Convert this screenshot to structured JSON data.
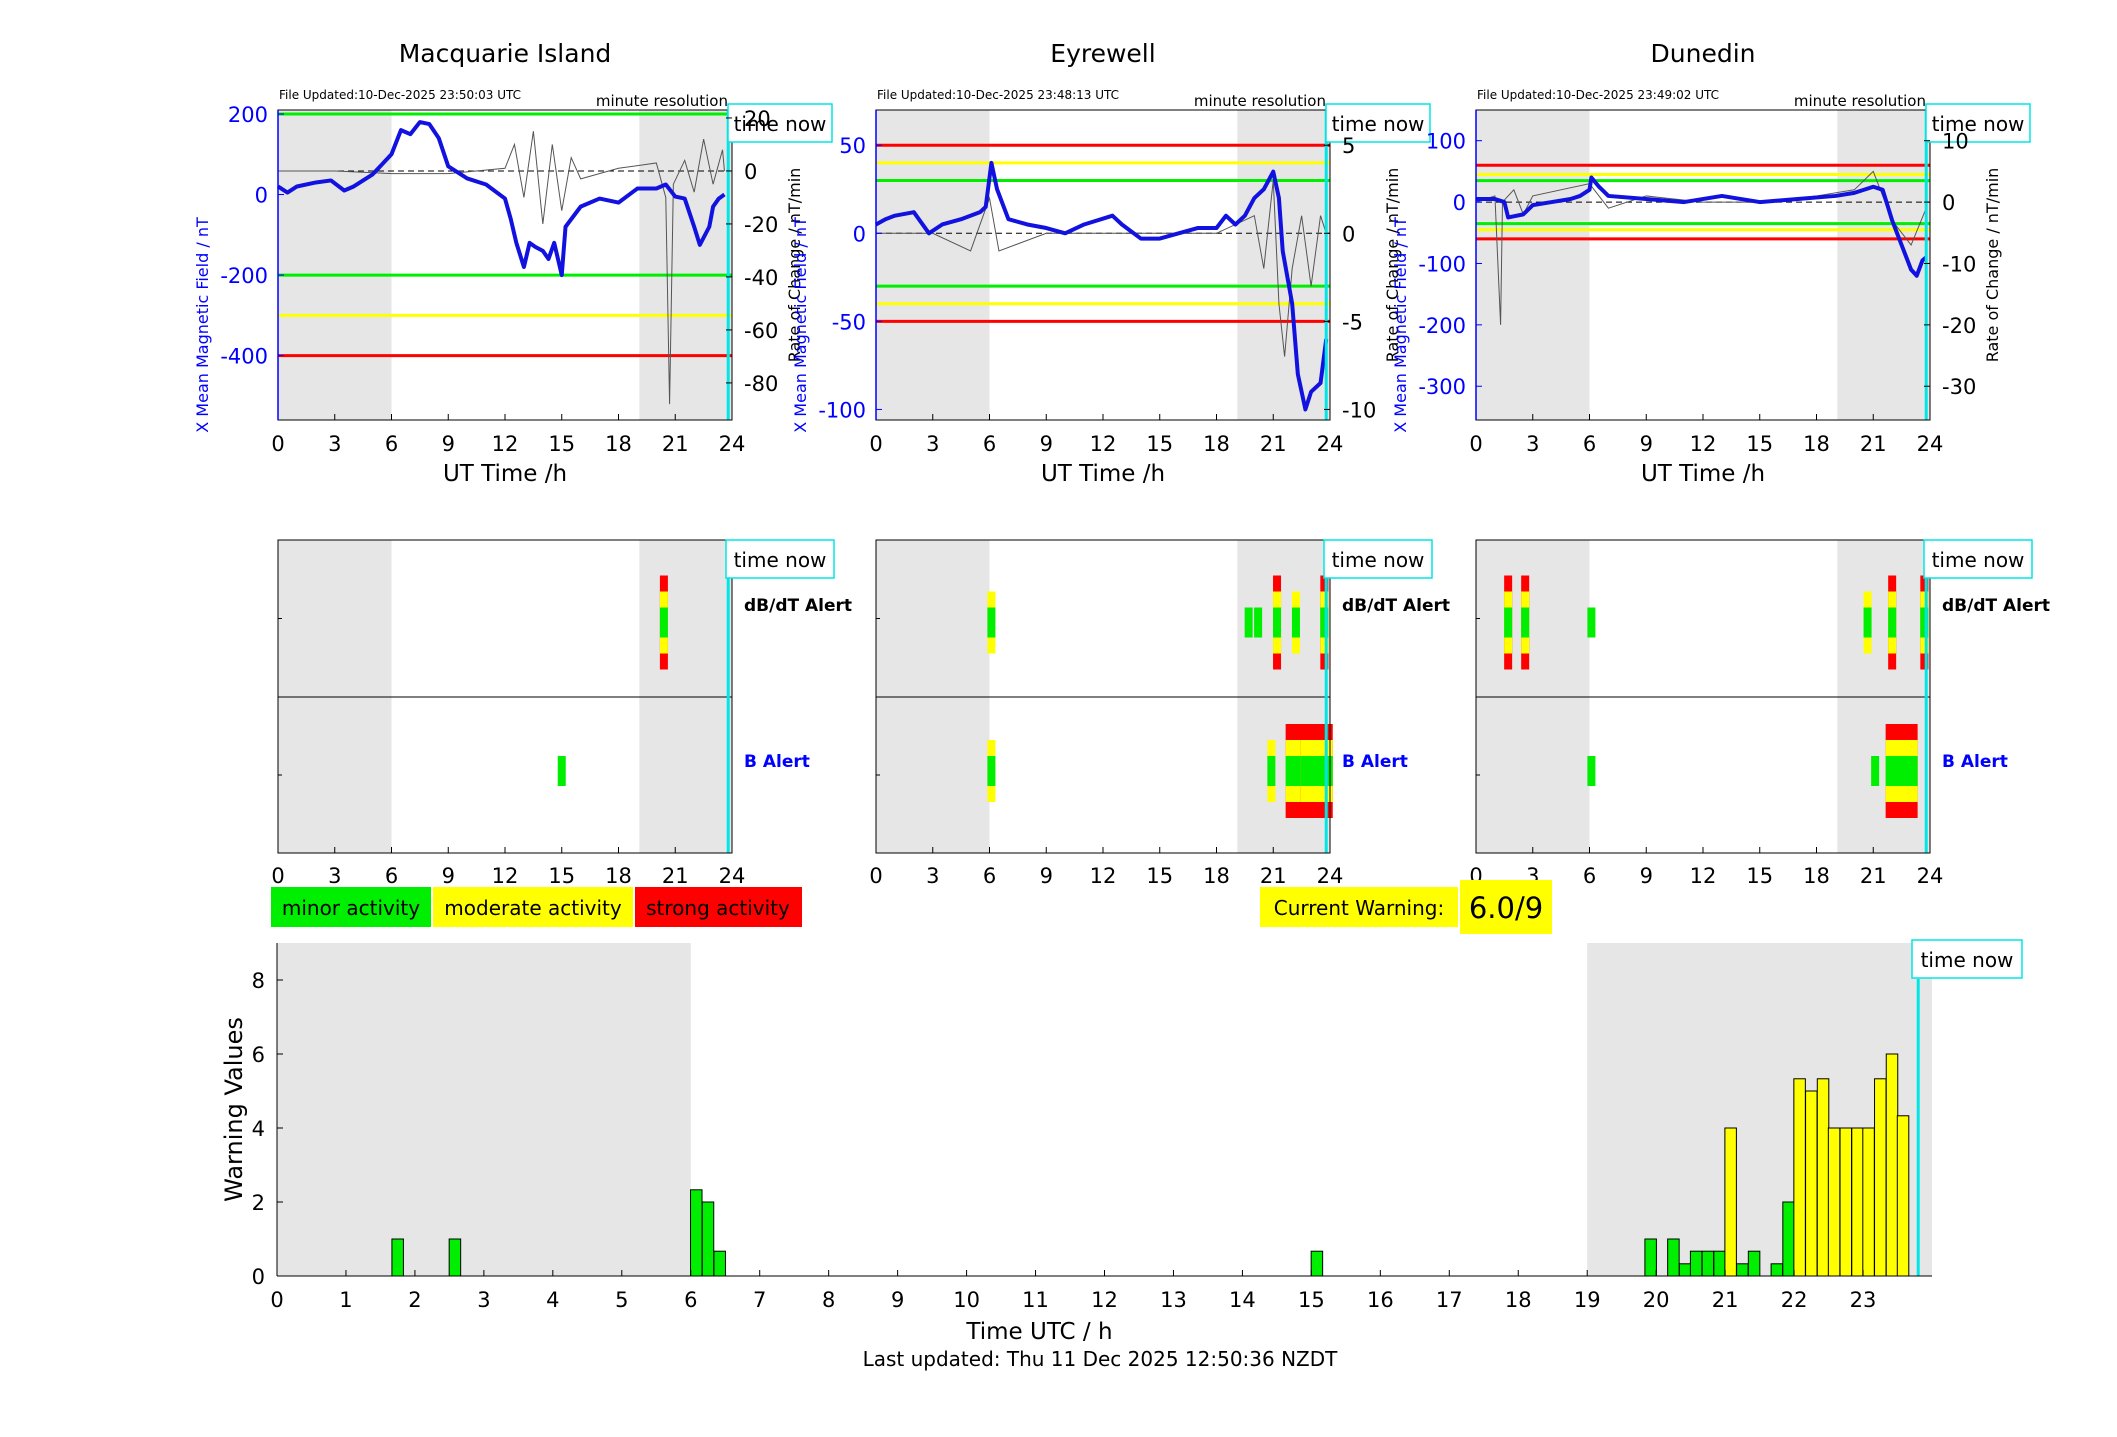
{
  "colors": {
    "shade": "#e6e6e6",
    "blue_trace": "#1212e0",
    "rate_trace": "#555555",
    "green": "#00ee00",
    "yellow": "#ffff00",
    "red": "#ff0000",
    "cyan": "#00e5e5",
    "axis_blue": "#0000ff"
  },
  "labels": {
    "time_now": "time now",
    "minute_resolution": "minute resolution",
    "dbdt_alert": "dB/dT Alert",
    "b_alert": "B Alert",
    "ut_time": "UT Time /h",
    "x_mean_label": "X Mean Magnetic Field / nT",
    "rate_label": "Rate of Change / nT/min",
    "legend_minor": "minor activity",
    "legend_moderate": "moderate activity",
    "legend_strong": "strong activity",
    "current_warning_label": "Current Warning:",
    "current_warning_value": "6.0/9",
    "bottom_xlabel": "Time UTC / h",
    "bottom_ylabel": "Warning Values",
    "last_updated": "Last updated: Thu 11 Dec 2025 12:50:36 NZDT"
  },
  "chart_data": [
    {
      "type": "line",
      "title": "Macquarie Island",
      "file_updated": "File Updated:10-Dec-2025 23:50:03 UTC",
      "resolution": "minute resolution",
      "xlabel": "UT Time /h",
      "xlim": [
        0,
        24
      ],
      "xticks": [
        0,
        3,
        6,
        9,
        12,
        15,
        18,
        21,
        24
      ],
      "left_axis": {
        "label": "X Mean Magnetic Field / nT",
        "lim": [
          -560,
          210
        ],
        "ticks": [
          200,
          0,
          -200,
          -400
        ]
      },
      "right_axis": {
        "label": "Rate of Change / nT/min",
        "lim": [
          -94,
          23
        ],
        "ticks": [
          20,
          0,
          -20,
          -40,
          -60,
          -80
        ]
      },
      "shaded_intervals": [
        [
          0,
          6
        ],
        [
          19.1,
          24
        ]
      ],
      "thresholds": [
        {
          "level": "green",
          "values": [
            200,
            -200
          ]
        },
        {
          "level": "yellow",
          "values": [
            -300
          ]
        },
        {
          "level": "red",
          "values": [
            -400
          ]
        }
      ],
      "series_x_mean": [
        [
          0,
          20
        ],
        [
          0.5,
          5
        ],
        [
          1,
          20
        ],
        [
          2,
          30
        ],
        [
          2.8,
          35
        ],
        [
          3.5,
          10
        ],
        [
          4,
          20
        ],
        [
          5,
          50
        ],
        [
          6,
          100
        ],
        [
          6.5,
          160
        ],
        [
          7,
          150
        ],
        [
          7.5,
          180
        ],
        [
          8,
          175
        ],
        [
          8.5,
          140
        ],
        [
          9,
          70
        ],
        [
          10,
          40
        ],
        [
          11,
          25
        ],
        [
          12,
          -10
        ],
        [
          12.3,
          -60
        ],
        [
          12.6,
          -120
        ],
        [
          13,
          -180
        ],
        [
          13.3,
          -120
        ],
        [
          13.6,
          -130
        ],
        [
          14,
          -140
        ],
        [
          14.3,
          -160
        ],
        [
          14.6,
          -120
        ],
        [
          15,
          -200
        ],
        [
          15.2,
          -80
        ],
        [
          16,
          -30
        ],
        [
          17,
          -10
        ],
        [
          18,
          -20
        ],
        [
          19,
          15
        ],
        [
          20,
          15
        ],
        [
          20.5,
          25
        ],
        [
          21,
          -5
        ],
        [
          21.5,
          -10
        ],
        [
          22,
          -80
        ],
        [
          22.3,
          -125
        ],
        [
          22.8,
          -80
        ],
        [
          23,
          -30
        ],
        [
          23.3,
          -10
        ],
        [
          23.6,
          0
        ]
      ],
      "series_rate": [
        [
          0,
          0
        ],
        [
          3,
          0
        ],
        [
          6,
          -1
        ],
        [
          9,
          -1
        ],
        [
          12,
          1
        ],
        [
          12.5,
          10
        ],
        [
          13,
          -10
        ],
        [
          13.5,
          15
        ],
        [
          14,
          -20
        ],
        [
          14.5,
          10
        ],
        [
          15,
          -15
        ],
        [
          15.5,
          5
        ],
        [
          16,
          -3
        ],
        [
          18,
          1
        ],
        [
          20,
          3
        ],
        [
          20.5,
          -10
        ],
        [
          20.7,
          -88
        ],
        [
          20.9,
          -5
        ],
        [
          21.5,
          4
        ],
        [
          22,
          -8
        ],
        [
          22.5,
          12
        ],
        [
          23,
          -5
        ],
        [
          23.5,
          8
        ],
        [
          23.6,
          0
        ]
      ],
      "alert_strips": {
        "dbdt": [
          {
            "t": 20.4,
            "level": "strong"
          }
        ],
        "b": [
          {
            "t": 15.0,
            "level": "minor"
          }
        ]
      },
      "time_now": 23.8
    },
    {
      "type": "line",
      "title": "Eyrewell",
      "file_updated": "File Updated:10-Dec-2025 23:48:13 UTC",
      "resolution": "minute resolution",
      "xlabel": "UT Time /h",
      "xlim": [
        0,
        24
      ],
      "xticks": [
        0,
        3,
        6,
        9,
        12,
        15,
        18,
        21,
        24
      ],
      "left_axis": {
        "label": "X Mean Magnetic Field / nT",
        "lim": [
          -106,
          70
        ],
        "ticks": [
          50,
          0,
          -50,
          -100
        ]
      },
      "right_axis": {
        "label": "Rate of Change / nT/min",
        "lim": [
          -10.6,
          7.0
        ],
        "ticks": [
          5,
          0,
          -5,
          -10
        ]
      },
      "shaded_intervals": [
        [
          0,
          6
        ],
        [
          19.1,
          24
        ]
      ],
      "thresholds": [
        {
          "level": "green",
          "values": [
            30,
            -30
          ]
        },
        {
          "level": "yellow",
          "values": [
            40,
            -40
          ]
        },
        {
          "level": "red",
          "values": [
            50,
            -50
          ]
        }
      ],
      "series_x_mean": [
        [
          0,
          5
        ],
        [
          0.5,
          8
        ],
        [
          1,
          10
        ],
        [
          2,
          12
        ],
        [
          2.8,
          0
        ],
        [
          3.5,
          5
        ],
        [
          4.5,
          8
        ],
        [
          5.5,
          12
        ],
        [
          5.8,
          15
        ],
        [
          6.1,
          40
        ],
        [
          6.4,
          25
        ],
        [
          7,
          8
        ],
        [
          8,
          5
        ],
        [
          9,
          3
        ],
        [
          10,
          0
        ],
        [
          11,
          5
        ],
        [
          12.5,
          10
        ],
        [
          13,
          5
        ],
        [
          14,
          -3
        ],
        [
          15,
          -3
        ],
        [
          16,
          0
        ],
        [
          17,
          3
        ],
        [
          18,
          3
        ],
        [
          18.5,
          10
        ],
        [
          19,
          5
        ],
        [
          19.5,
          10
        ],
        [
          20,
          20
        ],
        [
          20.5,
          25
        ],
        [
          21,
          35
        ],
        [
          21.3,
          20
        ],
        [
          21.5,
          -10
        ],
        [
          22,
          -40
        ],
        [
          22.3,
          -80
        ],
        [
          22.7,
          -100
        ],
        [
          23,
          -90
        ],
        [
          23.5,
          -85
        ],
        [
          23.8,
          -60
        ]
      ],
      "series_rate": [
        [
          0,
          0
        ],
        [
          3,
          0
        ],
        [
          5,
          -1
        ],
        [
          6,
          2
        ],
        [
          6.5,
          -1
        ],
        [
          9,
          0
        ],
        [
          12,
          0
        ],
        [
          15,
          0
        ],
        [
          18,
          0
        ],
        [
          20,
          1
        ],
        [
          20.5,
          -2
        ],
        [
          21,
          3
        ],
        [
          21.3,
          -4
        ],
        [
          21.6,
          -7
        ],
        [
          22,
          -2
        ],
        [
          22.5,
          1
        ],
        [
          23,
          -3
        ],
        [
          23.5,
          1
        ],
        [
          23.8,
          0
        ]
      ],
      "alert_strips": {
        "dbdt": [
          {
            "t": 6.1,
            "level": "moderate"
          },
          {
            "t": 19.7,
            "level": "minor"
          },
          {
            "t": 20.2,
            "level": "minor"
          },
          {
            "t": 21.2,
            "level": "strong"
          },
          {
            "t": 22.2,
            "level": "moderate"
          },
          {
            "t": 23.7,
            "level": "strong"
          }
        ],
        "b": [
          {
            "t": 6.1,
            "level": "moderate"
          },
          {
            "t": 20.9,
            "level": "moderate"
          },
          {
            "t": 22.5,
            "level": "strong"
          },
          {
            "t": 23.3,
            "level": "strong"
          }
        ]
      },
      "time_now": 23.8
    },
    {
      "type": "line",
      "title": "Dunedin",
      "file_updated": "File Updated:10-Dec-2025 23:49:02 UTC",
      "resolution": "minute resolution",
      "xlabel": "UT Time /h",
      "xlim": [
        0,
        24
      ],
      "xticks": [
        0,
        3,
        6,
        9,
        12,
        15,
        18,
        21,
        24
      ],
      "left_axis": {
        "label": "X Mean Magnetic Field / nT",
        "lim": [
          -355,
          150
        ],
        "ticks": [
          100,
          0,
          -100,
          -200,
          -300
        ]
      },
      "right_axis": {
        "label": "Rate of Change / nT/min",
        "lim": [
          -35.5,
          15
        ],
        "ticks": [
          10,
          0,
          -10,
          -20,
          -30
        ]
      },
      "shaded_intervals": [
        [
          0,
          6
        ],
        [
          19.1,
          24
        ]
      ],
      "thresholds": [
        {
          "level": "green",
          "values": [
            35,
            -35
          ]
        },
        {
          "level": "yellow",
          "values": [
            45,
            -45
          ]
        },
        {
          "level": "red",
          "values": [
            60,
            -60
          ]
        }
      ],
      "series_x_mean": [
        [
          0,
          5
        ],
        [
          1,
          5
        ],
        [
          1.5,
          0
        ],
        [
          1.7,
          -25
        ],
        [
          2.5,
          -20
        ],
        [
          3,
          -5
        ],
        [
          4,
          0
        ],
        [
          5,
          5
        ],
        [
          5.5,
          10
        ],
        [
          6,
          20
        ],
        [
          6.1,
          40
        ],
        [
          6.5,
          25
        ],
        [
          7,
          10
        ],
        [
          9,
          5
        ],
        [
          11,
          0
        ],
        [
          13,
          10
        ],
        [
          15,
          0
        ],
        [
          17,
          5
        ],
        [
          19,
          10
        ],
        [
          20,
          15
        ],
        [
          21,
          25
        ],
        [
          21.5,
          20
        ],
        [
          22,
          -30
        ],
        [
          22.5,
          -70
        ],
        [
          23,
          -110
        ],
        [
          23.3,
          -120
        ],
        [
          23.6,
          -95
        ],
        [
          23.8,
          -90
        ]
      ],
      "series_rate": [
        [
          0,
          0
        ],
        [
          1,
          1
        ],
        [
          1.3,
          -20
        ],
        [
          1.4,
          0
        ],
        [
          2,
          2
        ],
        [
          2.5,
          -2
        ],
        [
          3,
          1
        ],
        [
          6,
          3
        ],
        [
          7,
          -1
        ],
        [
          9,
          1
        ],
        [
          12,
          0
        ],
        [
          15,
          0
        ],
        [
          18,
          1
        ],
        [
          20,
          2
        ],
        [
          21,
          5
        ],
        [
          22,
          -3
        ],
        [
          23,
          -7
        ],
        [
          23.8,
          -1
        ]
      ],
      "alert_strips": {
        "dbdt": [
          {
            "t": 1.7,
            "level": "strong"
          },
          {
            "t": 2.6,
            "level": "strong"
          },
          {
            "t": 6.1,
            "level": "minor"
          },
          {
            "t": 20.7,
            "level": "moderate"
          },
          {
            "t": 22.0,
            "level": "strong"
          },
          {
            "t": 23.7,
            "level": "strong"
          }
        ],
        "b": [
          {
            "t": 6.1,
            "level": "minor"
          },
          {
            "t": 21.1,
            "level": "minor"
          },
          {
            "t": 22.5,
            "level": "strong"
          }
        ]
      },
      "time_now": 23.8
    },
    {
      "type": "bar",
      "title": "",
      "xlabel": "Time UTC / h",
      "ylabel": "Warning Values",
      "xlim": [
        0,
        24
      ],
      "ylim": [
        0,
        9
      ],
      "xticks": [
        0,
        1,
        2,
        3,
        4,
        5,
        6,
        7,
        8,
        9,
        10,
        11,
        12,
        13,
        14,
        15,
        16,
        17,
        18,
        19,
        20,
        21,
        22,
        23
      ],
      "yticks": [
        0,
        2,
        4,
        6,
        8
      ],
      "shaded_intervals": [
        [
          0,
          6
        ],
        [
          19,
          24
        ]
      ],
      "bar_width": 0.1667,
      "time_now": 23.8,
      "bars": [
        {
          "t": 1.75,
          "v": 1.0,
          "level": "minor"
        },
        {
          "t": 2.58,
          "v": 1.0,
          "level": "minor"
        },
        {
          "t": 6.08,
          "v": 2.33,
          "level": "minor"
        },
        {
          "t": 6.25,
          "v": 2.0,
          "level": "minor"
        },
        {
          "t": 6.42,
          "v": 0.67,
          "level": "minor"
        },
        {
          "t": 15.08,
          "v": 0.67,
          "level": "minor"
        },
        {
          "t": 19.92,
          "v": 1.0,
          "level": "minor"
        },
        {
          "t": 20.25,
          "v": 1.0,
          "level": "minor"
        },
        {
          "t": 20.42,
          "v": 0.33,
          "level": "minor"
        },
        {
          "t": 20.58,
          "v": 0.67,
          "level": "minor"
        },
        {
          "t": 20.75,
          "v": 0.67,
          "level": "minor"
        },
        {
          "t": 20.92,
          "v": 0.67,
          "level": "minor"
        },
        {
          "t": 21.08,
          "v": 4.0,
          "level": "moderate"
        },
        {
          "t": 21.25,
          "v": 0.33,
          "level": "minor"
        },
        {
          "t": 21.42,
          "v": 0.67,
          "level": "minor"
        },
        {
          "t": 21.75,
          "v": 0.33,
          "level": "minor"
        },
        {
          "t": 21.92,
          "v": 2.0,
          "level": "minor"
        },
        {
          "t": 22.08,
          "v": 5.33,
          "level": "moderate"
        },
        {
          "t": 22.25,
          "v": 5.0,
          "level": "moderate"
        },
        {
          "t": 22.42,
          "v": 5.33,
          "level": "moderate"
        },
        {
          "t": 22.58,
          "v": 4.0,
          "level": "moderate"
        },
        {
          "t": 22.75,
          "v": 4.0,
          "level": "moderate"
        },
        {
          "t": 22.92,
          "v": 4.0,
          "level": "moderate"
        },
        {
          "t": 23.08,
          "v": 4.0,
          "level": "moderate"
        },
        {
          "t": 23.25,
          "v": 5.33,
          "level": "moderate"
        },
        {
          "t": 23.42,
          "v": 6.0,
          "level": "moderate"
        },
        {
          "t": 23.58,
          "v": 4.33,
          "level": "moderate"
        }
      ]
    }
  ]
}
